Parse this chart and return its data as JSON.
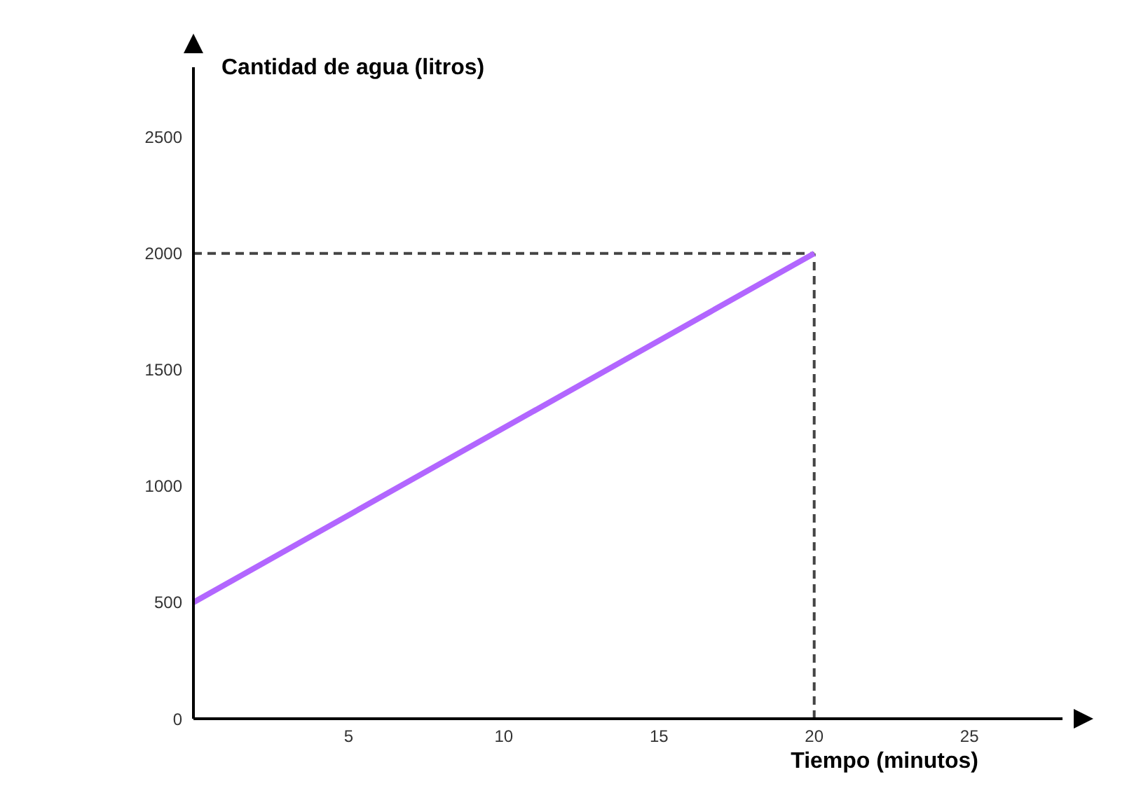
{
  "chart_data": {
    "type": "line",
    "xlabel": "Tiempo (minutos)",
    "ylabel": "Cantidad de agua (litros)",
    "x": [
      0,
      20
    ],
    "series": [
      {
        "color": "#b266ff",
        "values": [
          500,
          2000
        ]
      }
    ],
    "xlim": [
      0,
      28
    ],
    "xticks": [
      5,
      10,
      15,
      20,
      25
    ],
    "ylim": [
      0,
      2800
    ],
    "yticks": [
      0,
      500,
      1000,
      1500,
      2000,
      2500
    ],
    "ref_lines": [
      {
        "axis": "x",
        "value": 20,
        "color": "#444444",
        "line_style": "dashed"
      },
      {
        "axis": "y",
        "value": 2000,
        "color": "#444444",
        "line_style": "dashed"
      }
    ],
    "grid": false,
    "legend": false,
    "marker": "none",
    "line_style": "solid"
  }
}
